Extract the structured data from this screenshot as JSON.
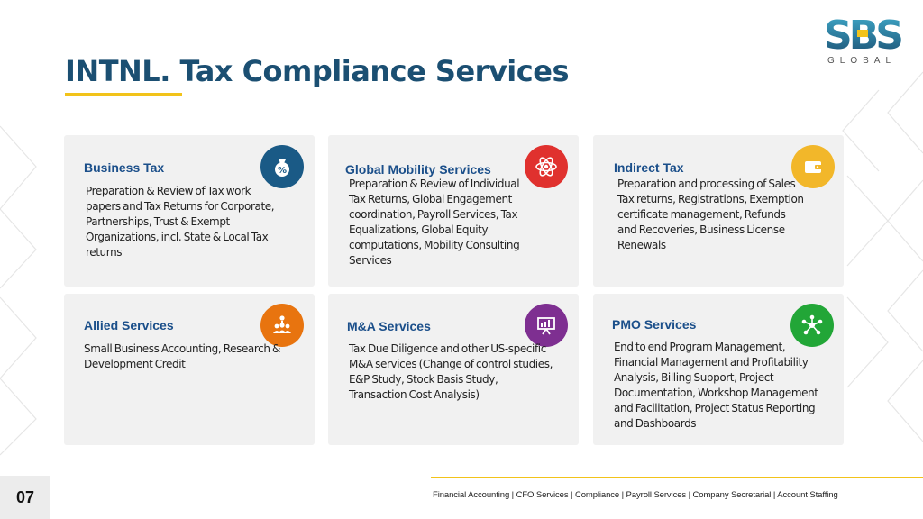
{
  "header": {
    "title": "INTNL. Tax Compliance Services"
  },
  "logo": {
    "mark": "SBS",
    "text": "GLOBAL"
  },
  "cards": [
    {
      "title": "Business Tax",
      "icon": "percent-bag-icon",
      "icon_color": "#1a5a86",
      "description": "Preparation & Review of Tax work papers and Tax Returns for Corporate, Partnerships, Trust & Exempt Organizations, incl. State & Local Tax returns"
    },
    {
      "title": "Global Mobility Services",
      "icon": "atom-icon",
      "icon_color": "#e0312e",
      "description": "Preparation & Review of Individual Tax Returns, Global Engagement coordination, Payroll Services, Tax Equalizations, Global Equity computations, Mobility Consulting Services"
    },
    {
      "title": "Indirect Tax",
      "icon": "wallet-icon",
      "icon_color": "#f2b72a",
      "description": "Preparation and processing of Sales Tax returns, Registrations, Exemption certificate management, Refunds and Recoveries, Business License Renewals"
    },
    {
      "title": "Allied Services",
      "icon": "group-idea-icon",
      "icon_color": "#e8740f",
      "description": "Small Business Accounting, Research & Development Credit"
    },
    {
      "title": "M&A Services",
      "icon": "presentation-icon",
      "icon_color": "#7e2f91",
      "description": "Tax Due Diligence and other US-specific M&A services (Change of control studies, E&P Study, Stock Basis Study, Transaction Cost Analysis)"
    },
    {
      "title": "PMO Services",
      "icon": "network-icon",
      "icon_color": "#22a637",
      "description": "End to end Program Management, Financial Management and Profitability Analysis, Billing Support, Project Documentation, Workshop Management and Facilitation, Project Status Reporting and Dashboards"
    }
  ],
  "footer": {
    "page_number": "07",
    "services": "Financial Accounting | CFO Services | Compliance | Payroll Services | Company Secretarial | Account Staffing"
  }
}
